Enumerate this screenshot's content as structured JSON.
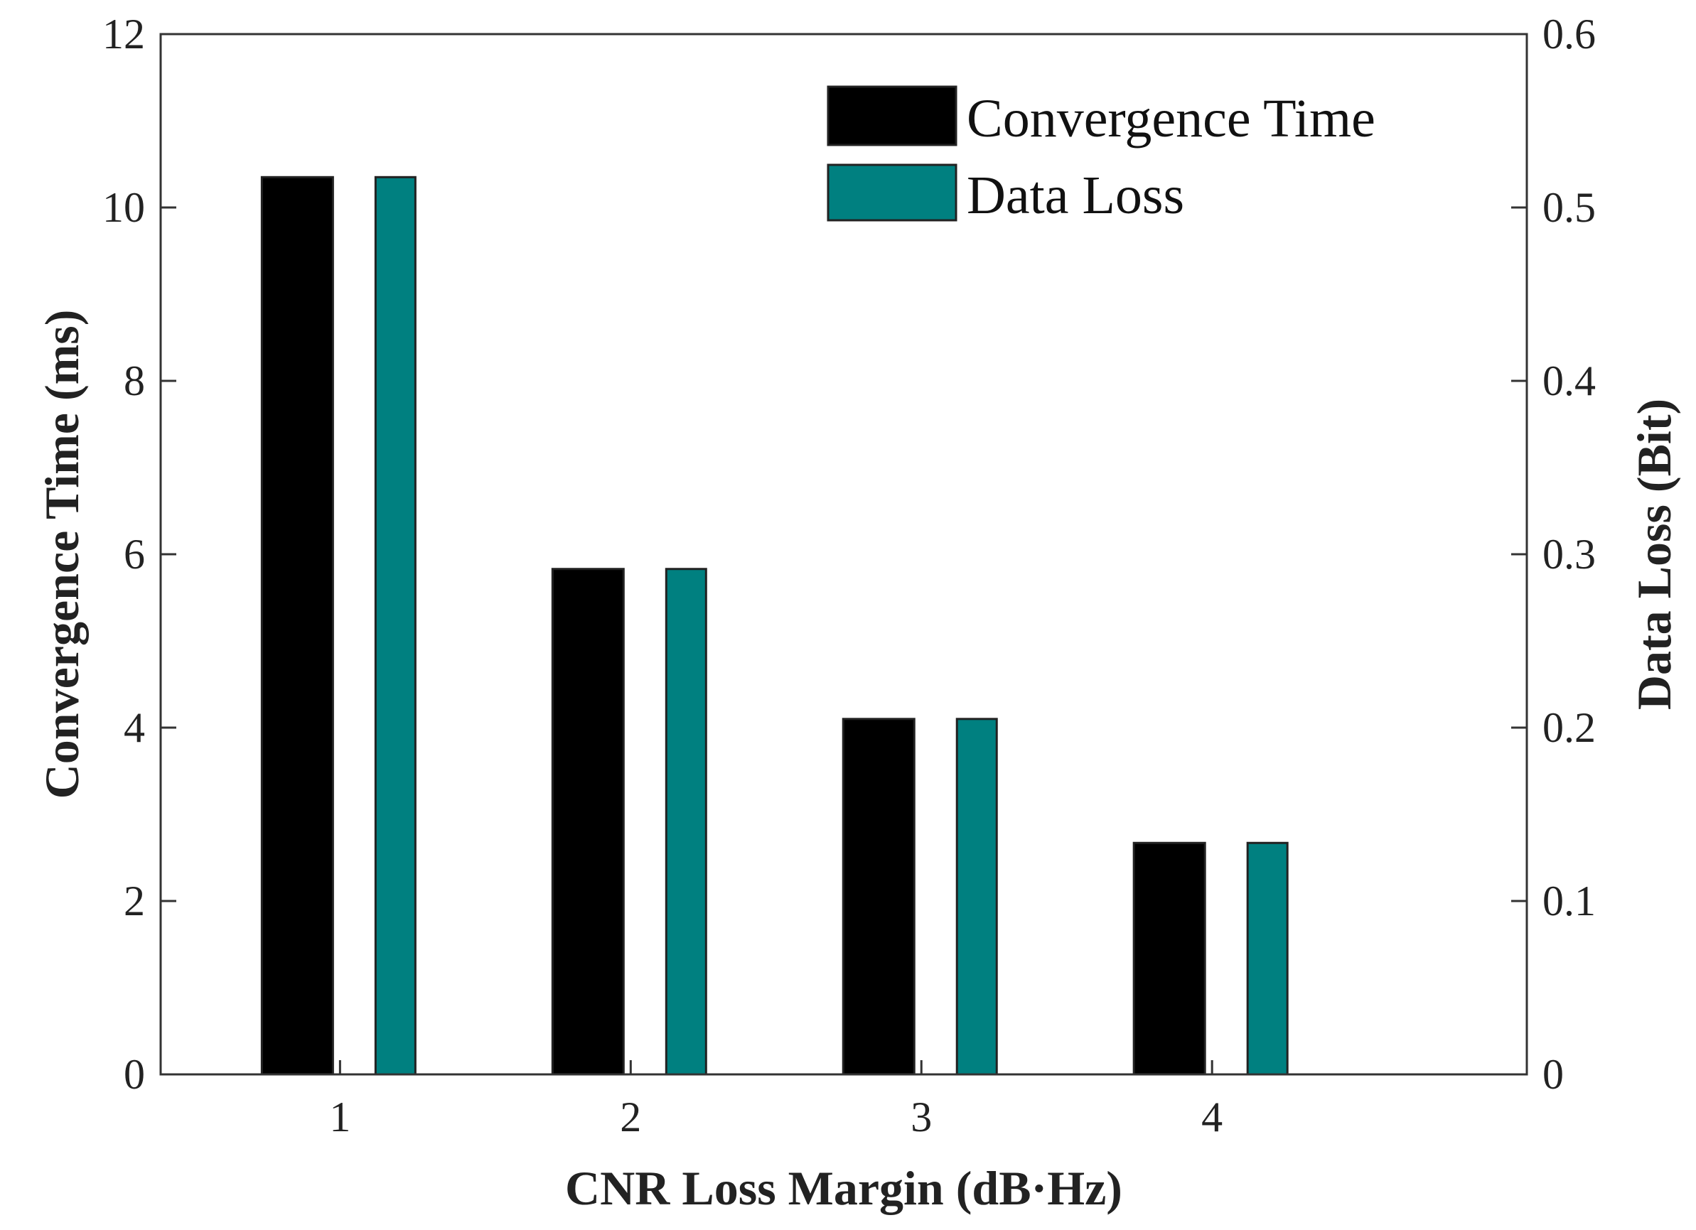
{
  "chart_data": {
    "type": "bar",
    "title": "",
    "xlabel": "CNR Loss Margin (dB·Hz)",
    "ylabel_left": "Convergence Time (ms)",
    "ylabel_right": "Data Loss (Bit)",
    "categories": [
      "1",
      "2",
      "3",
      "4"
    ],
    "ylim_left": [
      0,
      12
    ],
    "ylim_right": [
      0,
      0.6
    ],
    "yticks_left": [
      "0",
      "2",
      "4",
      "6",
      "8",
      "10",
      "12"
    ],
    "yticks_right": [
      "0",
      "0.1",
      "0.2",
      "0.3",
      "0.4",
      "0.5",
      "0.6"
    ],
    "grid": false,
    "legend_position": "top-right",
    "series": [
      {
        "name": "Convergence Time",
        "axis": "left",
        "color": "#000000",
        "values": [
          10.35,
          5.83,
          4.1,
          2.67
        ]
      },
      {
        "name": "Data Loss",
        "axis": "right",
        "color": "#008080",
        "values": [
          0.5175,
          0.2915,
          0.205,
          0.1335
        ]
      }
    ]
  }
}
